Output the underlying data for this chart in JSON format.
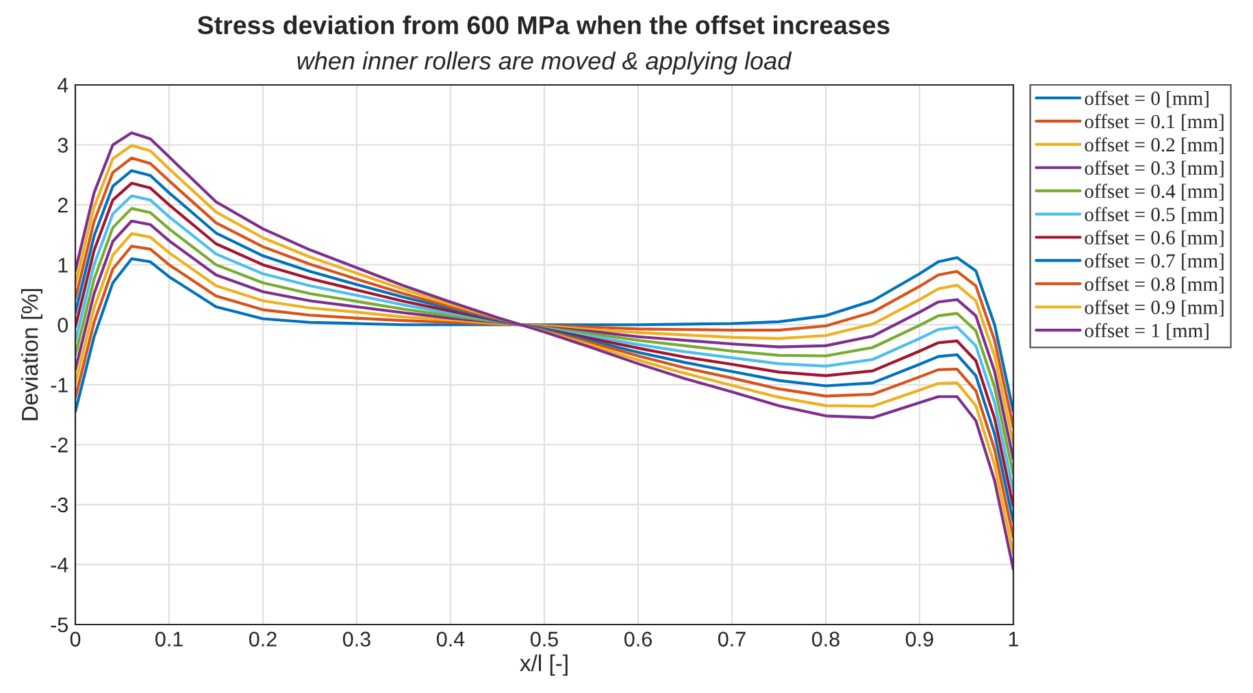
{
  "chart_data": {
    "type": "line",
    "title": "Stress deviation from 600 MPa when the offset increases",
    "subtitle": "when inner rollers are moved & applying load",
    "xlabel": "x/l [-]",
    "ylabel": "Deviation [%]",
    "x": [
      0,
      0.02,
      0.04,
      0.06,
      0.08,
      0.1,
      0.15,
      0.2,
      0.25,
      0.3,
      0.35,
      0.4,
      0.45,
      0.475,
      0.5,
      0.55,
      0.6,
      0.65,
      0.7,
      0.75,
      0.8,
      0.85,
      0.9,
      0.92,
      0.94,
      0.96,
      0.98,
      1.0
    ],
    "series": [
      {
        "name": "offset = 0 [mm]",
        "color": "#0072bd",
        "values": [
          -1.45,
          -0.2,
          0.7,
          1.1,
          1.05,
          0.8,
          0.3,
          0.1,
          0.04,
          0.02,
          0,
          0,
          0,
          0,
          0,
          0,
          0,
          0.01,
          0.02,
          0.05,
          0.15,
          0.4,
          0.85,
          1.05,
          1.12,
          0.9,
          0,
          -1.45
        ]
      },
      {
        "name": "offset = 0.1 [mm]",
        "color": "#d95319",
        "values": [
          -1.22,
          0.04,
          0.93,
          1.31,
          1.26,
          1.0,
          0.48,
          0.25,
          0.16,
          0.11,
          0.07,
          0.04,
          0.01,
          0,
          -0.01,
          -0.04,
          -0.07,
          -0.08,
          -0.09,
          -0.09,
          -0.02,
          0.21,
          0.64,
          0.83,
          0.89,
          0.65,
          -0.26,
          -1.71
        ]
      },
      {
        "name": "offset = 0.2 [mm]",
        "color": "#edb120",
        "values": [
          -0.98,
          0.28,
          1.16,
          1.52,
          1.46,
          1.2,
          0.65,
          0.4,
          0.28,
          0.21,
          0.13,
          0.08,
          0.02,
          0,
          -0.02,
          -0.08,
          -0.13,
          -0.17,
          -0.21,
          -0.23,
          -0.18,
          0.01,
          0.42,
          0.6,
          0.66,
          0.4,
          -0.52,
          -1.98
        ]
      },
      {
        "name": "offset = 0.3 [mm]",
        "color": "#7e2f8e",
        "values": [
          -0.75,
          0.52,
          1.39,
          1.73,
          1.67,
          1.4,
          0.83,
          0.55,
          0.4,
          0.3,
          0.2,
          0.11,
          0.04,
          0,
          -0.04,
          -0.11,
          -0.2,
          -0.26,
          -0.32,
          -0.37,
          -0.35,
          -0.19,
          0.21,
          0.38,
          0.42,
          0.15,
          -0.78,
          -2.24
        ]
      },
      {
        "name": "offset = 0.4 [mm]",
        "color": "#77ac30",
        "values": [
          -0.51,
          0.76,
          1.62,
          1.94,
          1.87,
          1.6,
          1.0,
          0.7,
          0.52,
          0.39,
          0.26,
          0.15,
          0.05,
          0,
          -0.05,
          -0.15,
          -0.26,
          -0.35,
          -0.44,
          -0.51,
          -0.52,
          -0.38,
          -0.01,
          0.15,
          0.19,
          -0.1,
          -1.04,
          -2.5
        ]
      },
      {
        "name": "offset = 0.5 [mm]",
        "color": "#4dbeee",
        "values": [
          -0.28,
          1.0,
          1.85,
          2.15,
          2.08,
          1.8,
          1.18,
          0.85,
          0.65,
          0.49,
          0.33,
          0.19,
          0.06,
          0,
          -0.06,
          -0.19,
          -0.33,
          -0.45,
          -0.55,
          -0.65,
          -0.69,
          -0.58,
          -0.23,
          -0.08,
          -0.04,
          -0.35,
          -1.3,
          -2.77
        ]
      },
      {
        "name": "offset = 0.6 [mm]",
        "color": "#a2142f",
        "values": [
          -0.04,
          1.24,
          2.08,
          2.36,
          2.28,
          2.0,
          1.35,
          1.0,
          0.77,
          0.58,
          0.39,
          0.23,
          0.07,
          0,
          -0.07,
          -0.23,
          -0.39,
          -0.54,
          -0.66,
          -0.79,
          -0.85,
          -0.77,
          -0.44,
          -0.3,
          -0.27,
          -0.6,
          -1.56,
          -3.03
        ]
      },
      {
        "name": "offset = 0.7 [mm]",
        "color": "#0072bd",
        "values": [
          0.2,
          1.48,
          2.31,
          2.57,
          2.49,
          2.2,
          1.53,
          1.15,
          0.89,
          0.67,
          0.46,
          0.27,
          0.08,
          0,
          -0.08,
          -0.27,
          -0.46,
          -0.63,
          -0.78,
          -0.93,
          -1.02,
          -0.97,
          -0.66,
          -0.53,
          -0.5,
          -0.85,
          -1.82,
          -3.29
        ]
      },
      {
        "name": "offset = 0.8 [mm]",
        "color": "#d95319",
        "values": [
          0.43,
          1.72,
          2.54,
          2.78,
          2.69,
          2.4,
          1.7,
          1.3,
          1.01,
          0.76,
          0.52,
          0.3,
          0.1,
          0,
          -0.1,
          -0.3,
          -0.52,
          -0.72,
          -0.89,
          -1.07,
          -1.19,
          -1.16,
          -0.87,
          -0.75,
          -0.74,
          -1.1,
          -2.08,
          -3.55
        ]
      },
      {
        "name": "offset = 0.9 [mm]",
        "color": "#edb120",
        "values": [
          0.67,
          1.96,
          2.77,
          2.99,
          2.9,
          2.6,
          1.88,
          1.45,
          1.13,
          0.86,
          0.59,
          0.34,
          0.11,
          0,
          -0.11,
          -0.34,
          -0.59,
          -0.81,
          -1.01,
          -1.21,
          -1.35,
          -1.36,
          -1.09,
          -0.98,
          -0.97,
          -1.35,
          -2.34,
          -3.82
        ]
      },
      {
        "name": "offset = 1 [mm]",
        "color": "#7e2f8e",
        "values": [
          0.9,
          2.2,
          3.0,
          3.2,
          3.1,
          2.8,
          2.05,
          1.6,
          1.25,
          0.95,
          0.65,
          0.38,
          0.12,
          0,
          -0.12,
          -0.38,
          -0.65,
          -0.9,
          -1.12,
          -1.35,
          -1.52,
          -1.55,
          -1.3,
          -1.2,
          -1.2,
          -1.6,
          -2.6,
          -4.08
        ]
      }
    ],
    "xlim": [
      0,
      1
    ],
    "xticks": [
      0,
      0.1,
      0.2,
      0.3,
      0.4,
      0.5,
      0.6,
      0.7,
      0.8,
      0.9,
      1
    ],
    "ylim": [
      -5,
      4
    ],
    "yticks": [
      -5,
      -4,
      -3,
      -2,
      -1,
      0,
      1,
      2,
      3,
      4
    ],
    "grid": true,
    "legend": "top right",
    "line_style": "solid"
  }
}
